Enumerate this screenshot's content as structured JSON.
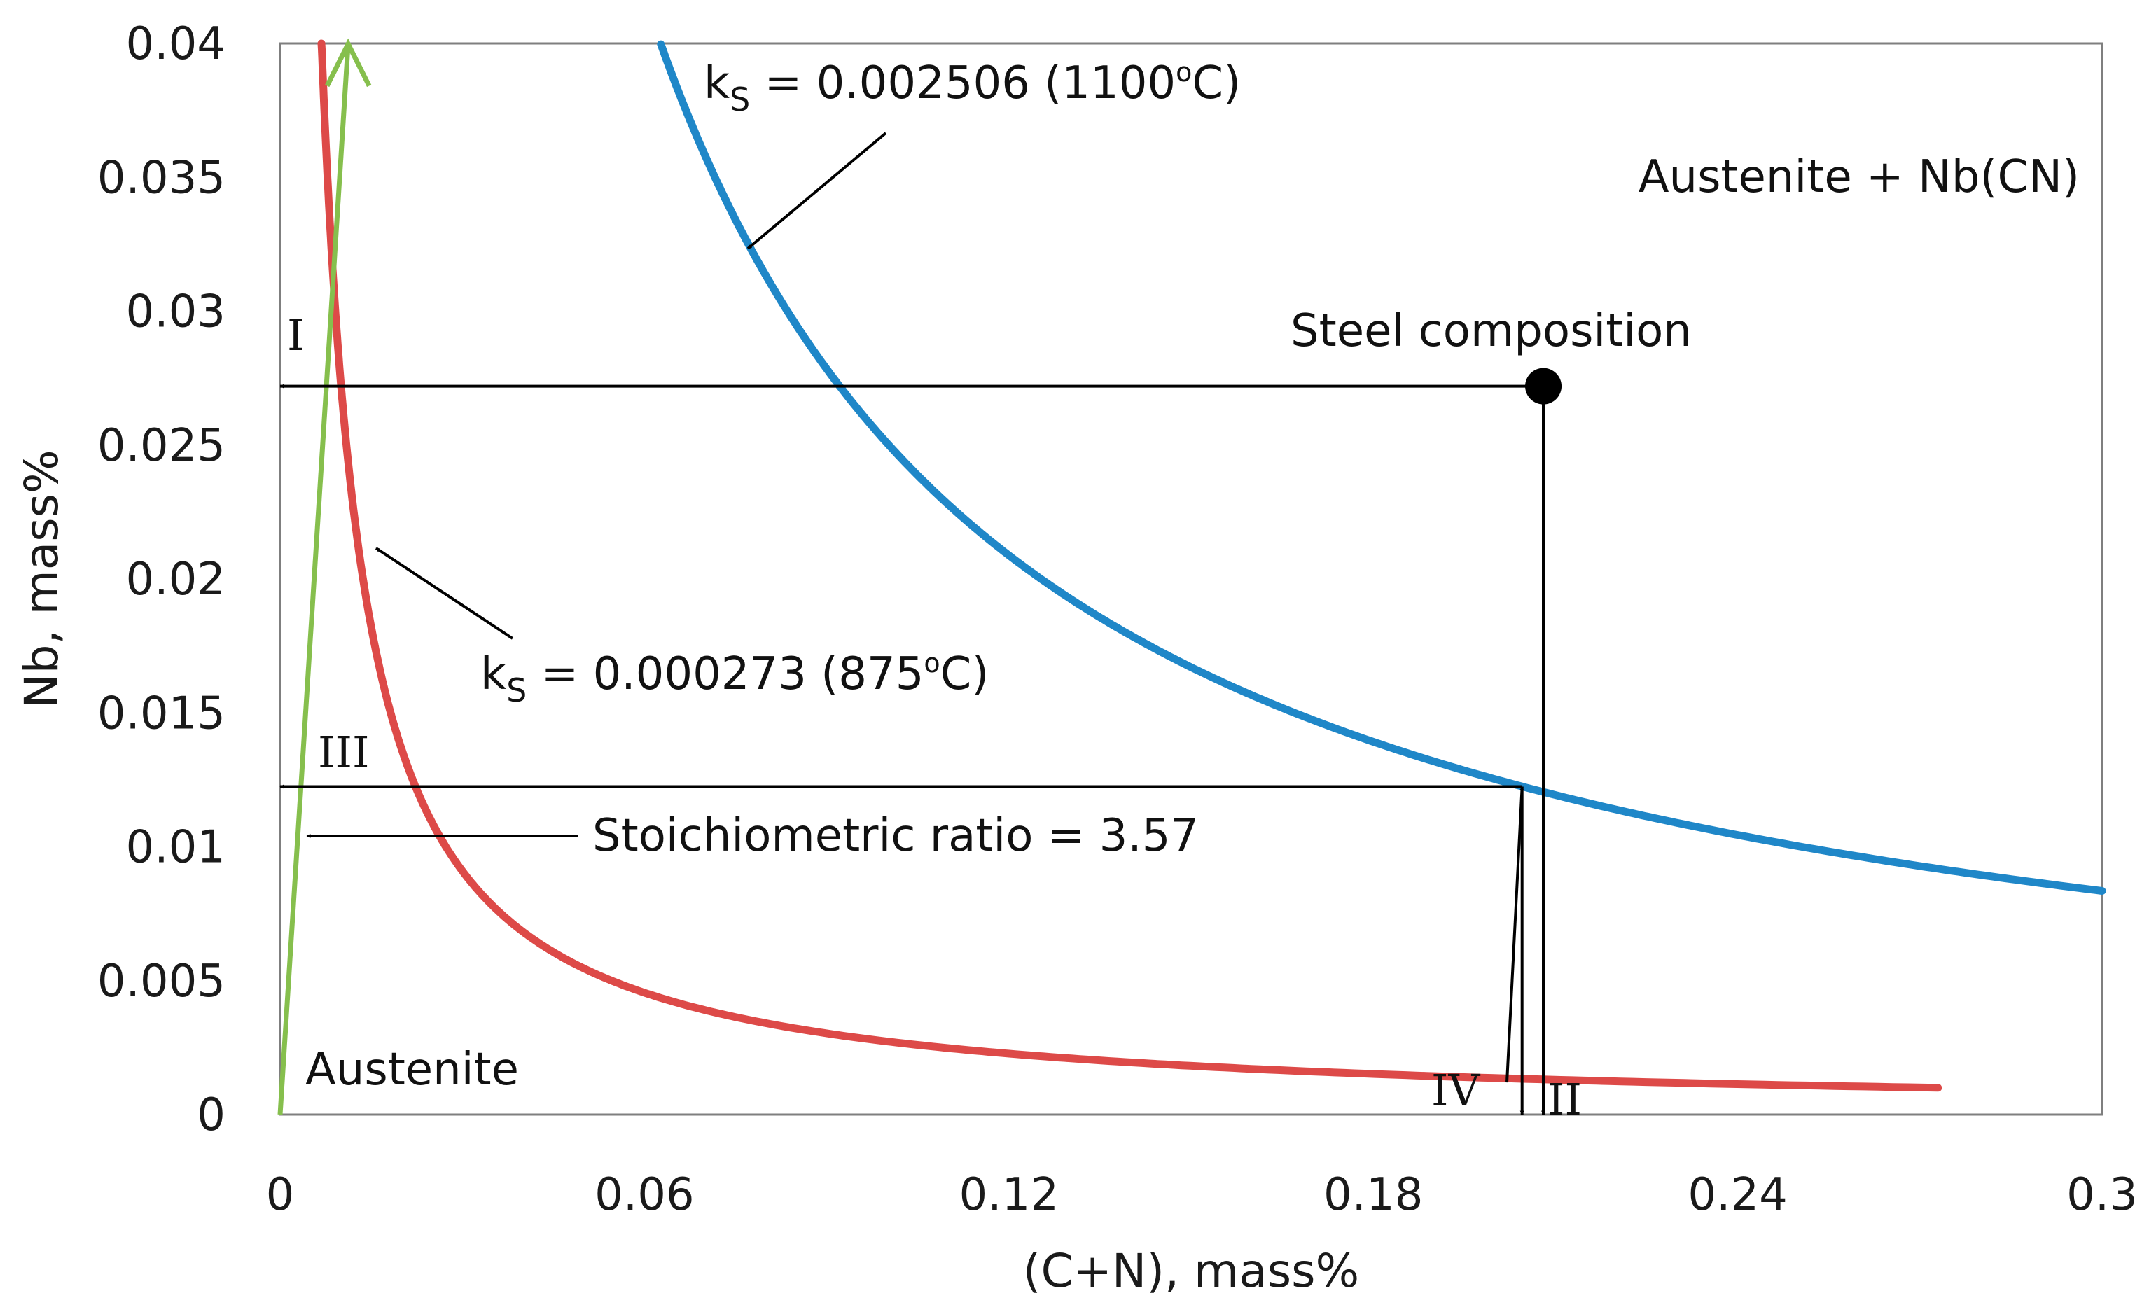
{
  "chart_data": {
    "type": "line",
    "xlabel": "(C+N), mass%",
    "ylabel": "Nb, mass%",
    "xlim": [
      0,
      0.3
    ],
    "ylim": [
      0,
      0.04
    ],
    "x_ticks": [
      0,
      0.06,
      0.12,
      0.18,
      0.24,
      0.3
    ],
    "y_ticks": [
      0,
      0.005,
      0.01,
      0.015,
      0.02,
      0.025,
      0.03,
      0.035,
      0.04
    ],
    "x_tick_labels": [
      "0",
      "0.06",
      "0.12",
      "0.18",
      "0.24",
      "0.3"
    ],
    "y_tick_labels": [
      "0",
      "0.005",
      "0.01",
      "0.015",
      "0.02",
      "0.025",
      "0.03",
      "0.035",
      "0.04"
    ],
    "grid": false,
    "series": [
      {
        "name": "ks = 0.002506 (1100°C)",
        "kind": "hyperbola",
        "k": 0.002506,
        "x_range": [
          0.0627,
          0.3
        ],
        "color": "#1f87c8"
      },
      {
        "name": "ks = 0.000273 (875°C)",
        "kind": "hyperbola",
        "k": 0.000273,
        "x_range": [
          0.0068,
          0.273
        ],
        "color": "#dd4a48"
      },
      {
        "name": "Stoichiometric ratio = 3.57",
        "kind": "line",
        "slope": 3.57,
        "x_range": [
          0,
          0.0112
        ],
        "color": "#86bf4d"
      }
    ],
    "point": {
      "label": "Steel composition",
      "x": 0.208,
      "y": 0.0272
    },
    "region_labels": {
      "upper": "Austenite + Nb(CN)",
      "lower": "Austenite"
    },
    "annotations": {
      "ks_high_prefix": "k",
      "ks_high_sub": "S",
      "ks_high_rest": " = 0.002506 (1100",
      "ks_high_deg": "o",
      "ks_high_unit": "C)",
      "ks_low_prefix": "k",
      "ks_low_sub": "S",
      "ks_low_rest": " = 0.000273 (875",
      "ks_low_deg": "o",
      "ks_low_unit": "C)",
      "stoich": "Stoichiometric ratio = 3.57",
      "step_I": "I",
      "step_II": "II",
      "step_III": "III",
      "step_IV": "IV"
    },
    "arrow_paths": {
      "I": {
        "from": [
          0.208,
          0.0272
        ],
        "to": [
          0,
          0.0272
        ]
      },
      "II": {
        "from": [
          0.208,
          0.0272
        ],
        "to": [
          0.208,
          0
        ]
      },
      "III": {
        "from": [
          0.2045,
          0.01225
        ],
        "to": [
          0,
          0.01225
        ]
      },
      "IV": {
        "from": [
          0.202,
          0.0012
        ],
        "to": [
          0.2045,
          0.01225
        ]
      }
    },
    "colors": {
      "ks_high": "#1f87c8",
      "ks_low": "#dd4a48",
      "stoich": "#86bf4d",
      "arrows": "#000000",
      "frame": "#7f7f7f"
    }
  }
}
